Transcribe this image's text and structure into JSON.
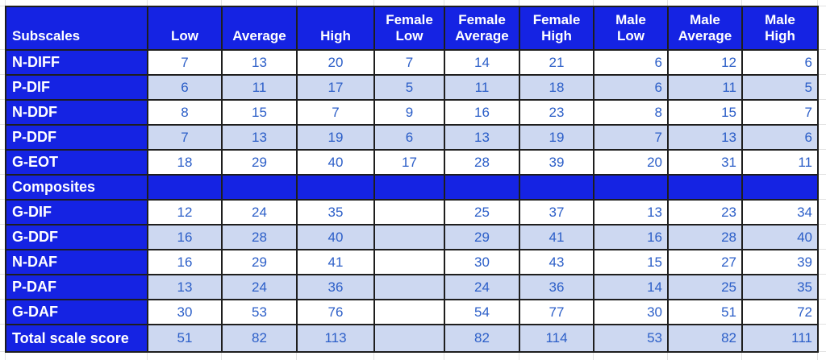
{
  "colors": {
    "header_blue": "#1523e3",
    "stripe_blue": "#cdd8f1",
    "value_blue": "#2b5ec8",
    "border_dark": "#1e1e1e",
    "gridline": "#e2e2e2"
  },
  "chart_data": {
    "type": "table",
    "title": "",
    "columns": [
      "Subscales",
      "Low",
      "Average",
      "High",
      "Female Low",
      "Female Average",
      "Female High",
      "Male Low",
      "Male Average",
      "Male High"
    ],
    "column_alignments": [
      "left",
      "center",
      "center",
      "center",
      "center",
      "center",
      "center",
      "right",
      "right",
      "right"
    ],
    "rows": [
      {
        "label": "N-DIFF",
        "section": false,
        "values": [
          "7",
          "13",
          "20",
          "7",
          "14",
          "21",
          "6",
          "12",
          "6"
        ]
      },
      {
        "label": "P-DIF",
        "section": false,
        "values": [
          "6",
          "11",
          "17",
          "5",
          "11",
          "18",
          "6",
          "11",
          "5"
        ]
      },
      {
        "label": "N-DDF",
        "section": false,
        "values": [
          "8",
          "15",
          "7",
          "9",
          "16",
          "23",
          "8",
          "15",
          "7"
        ]
      },
      {
        "label": "P-DDF",
        "section": false,
        "values": [
          "7",
          "13",
          "19",
          "6",
          "13",
          "19",
          "7",
          "13",
          "6"
        ]
      },
      {
        "label": "G-EOT",
        "section": false,
        "values": [
          "18",
          "29",
          "40",
          "17",
          "28",
          "39",
          "20",
          "31",
          "11"
        ]
      },
      {
        "label": "Composites",
        "section": true,
        "values": [
          "",
          "",
          "",
          "",
          "",
          "",
          "",
          "",
          ""
        ]
      },
      {
        "label": "G-DIF",
        "section": false,
        "values": [
          "12",
          "24",
          "35",
          "",
          "25",
          "37",
          "13",
          "23",
          "34"
        ]
      },
      {
        "label": "G-DDF",
        "section": false,
        "values": [
          "16",
          "28",
          "40",
          "",
          "29",
          "41",
          "16",
          "28",
          "40"
        ]
      },
      {
        "label": "N-DAF",
        "section": false,
        "values": [
          "16",
          "29",
          "41",
          "",
          "30",
          "43",
          "15",
          "27",
          "39"
        ]
      },
      {
        "label": "P-DAF",
        "section": false,
        "values": [
          "13",
          "24",
          "36",
          "",
          "24",
          "36",
          "14",
          "25",
          "35"
        ]
      },
      {
        "label": "G-DAF",
        "section": false,
        "values": [
          "30",
          "53",
          "76",
          "",
          "54",
          "77",
          "30",
          "51",
          "72"
        ]
      },
      {
        "label": "Total scale score",
        "section": false,
        "values": [
          "51",
          "82",
          "113",
          "",
          "82",
          "114",
          "53",
          "82",
          "111"
        ]
      }
    ]
  }
}
